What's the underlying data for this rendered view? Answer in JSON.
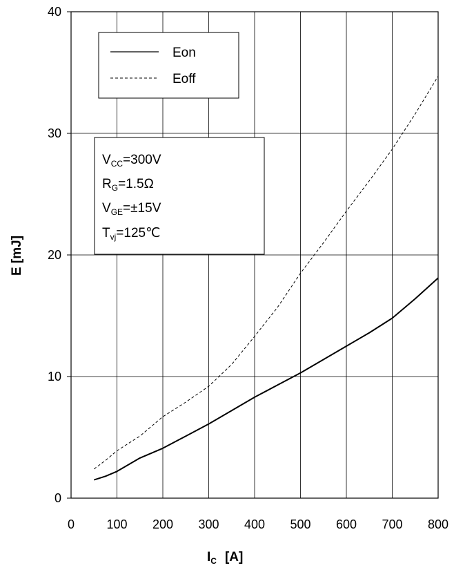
{
  "chart_data": {
    "type": "line",
    "xlabel": "I",
    "xlabel_sub": "C",
    "xlabel_unit": "[A]",
    "ylabel": "E  [mJ]",
    "xlim": [
      0,
      800
    ],
    "ylim": [
      0,
      40
    ],
    "x_ticks": [
      "0",
      "100",
      "200",
      "300",
      "400",
      "500",
      "600",
      "700",
      "800"
    ],
    "y_ticks": [
      "0",
      "10",
      "20",
      "30",
      "40"
    ],
    "grid": true,
    "legend_position": "top-left",
    "series": [
      {
        "name": "Eon",
        "style": "solid",
        "x": [
          50,
          75,
          100,
          150,
          200,
          250,
          300,
          350,
          400,
          450,
          500,
          550,
          600,
          650,
          700,
          750,
          800
        ],
        "y": [
          1.5,
          1.8,
          2.2,
          3.3,
          4.1,
          5.1,
          6.1,
          7.2,
          8.3,
          9.3,
          10.3,
          11.4,
          12.5,
          13.6,
          14.8,
          16.4,
          18.1
        ]
      },
      {
        "name": "Eoff",
        "style": "dashed",
        "x": [
          50,
          75,
          100,
          150,
          200,
          250,
          300,
          350,
          400,
          450,
          500,
          550,
          600,
          650,
          700,
          750,
          800
        ],
        "y": [
          2.4,
          3.1,
          3.9,
          5.1,
          6.7,
          7.9,
          9.2,
          11.0,
          13.3,
          15.7,
          18.5,
          21.0,
          23.6,
          26.1,
          28.7,
          31.6,
          34.7
        ]
      }
    ],
    "conditions": [
      {
        "main": "V",
        "sub": "CC",
        "rest": "=300V"
      },
      {
        "main": "R",
        "sub": "G",
        "rest": "=1.5Ω"
      },
      {
        "main": "V",
        "sub": "GE",
        "rest": "=±15V"
      },
      {
        "main": "T",
        "sub": "vj",
        "rest": "=125℃"
      }
    ]
  }
}
